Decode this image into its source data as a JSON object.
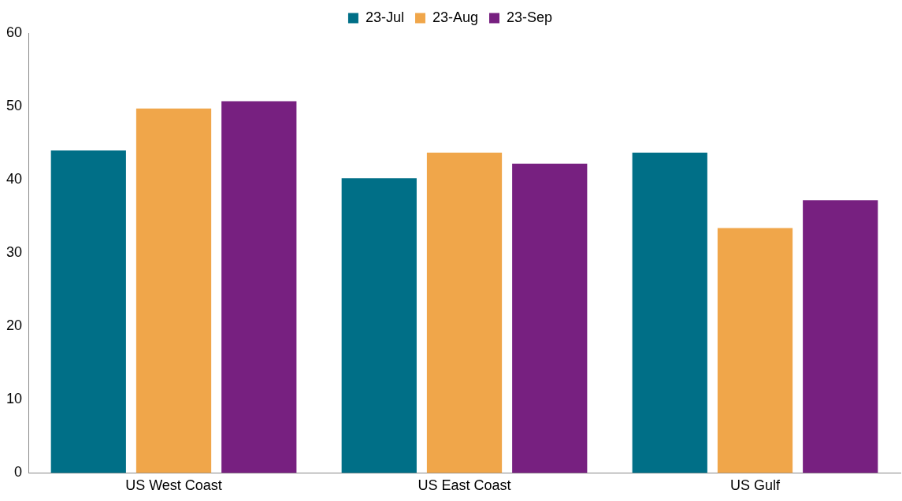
{
  "chart_data": {
    "type": "bar",
    "categories": [
      "US West Coast",
      "US East Coast",
      "US Gulf"
    ],
    "series": [
      {
        "name": "23-Jul",
        "color": "#006f87",
        "values": [
          44,
          40.2,
          43.7
        ]
      },
      {
        "name": "23-Aug",
        "color": "#f0a64a",
        "values": [
          49.7,
          43.7,
          33.4
        ]
      },
      {
        "name": "23-Sep",
        "color": "#772080",
        "values": [
          50.7,
          42.2,
          37.2
        ]
      }
    ],
    "ylim": [
      0,
      60
    ],
    "yticks": [
      0,
      10,
      20,
      30,
      40,
      50,
      60
    ],
    "grid": false,
    "legend": "top"
  }
}
